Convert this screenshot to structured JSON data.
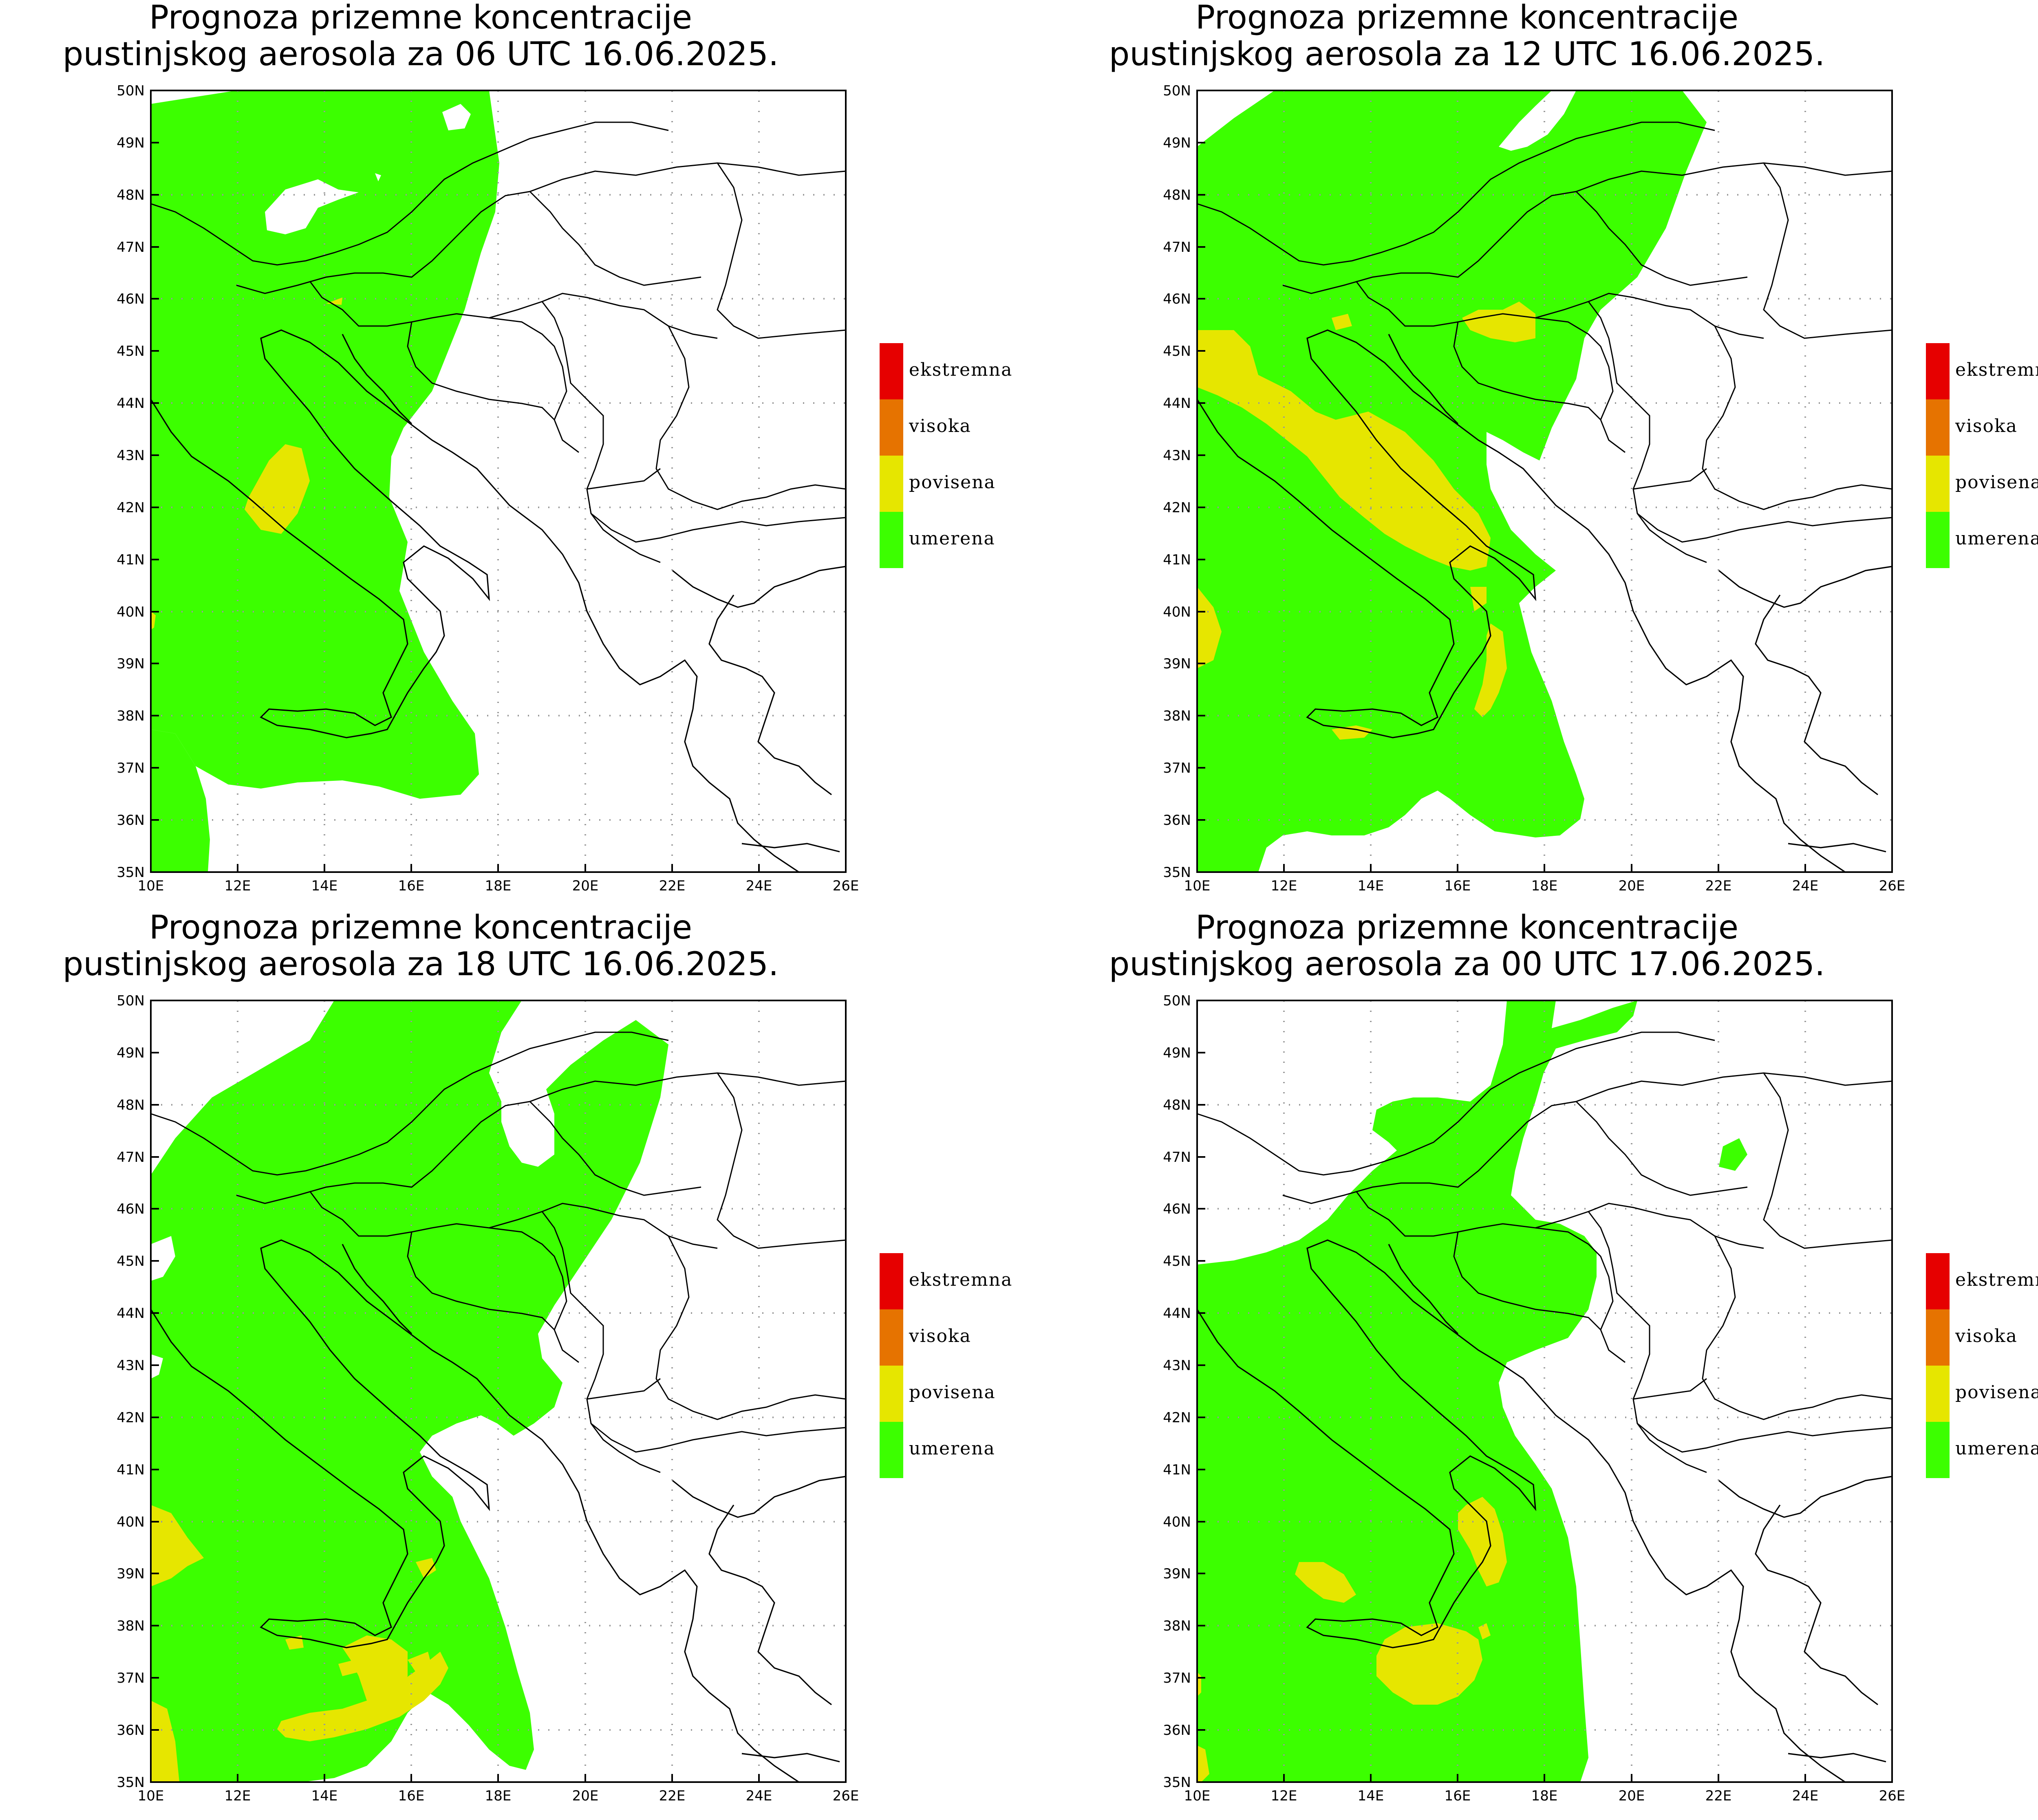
{
  "panels": [
    {
      "title_line1": "Prognoza prizemne koncentracije",
      "title_line2": "pustinjskog aerosola za 06 UTC 16.06.2025."
    },
    {
      "title_line1": "Prognoza prizemne koncentracije",
      "title_line2": "pustinjskog aerosola za 12 UTC 16.06.2025."
    },
    {
      "title_line1": "Prognoza prizemne koncentracije",
      "title_line2": "pustinjskog aerosola za 18 UTC 16.06.2025."
    },
    {
      "title_line1": "Prognoza prizemne koncentracije",
      "title_line2": "pustinjskog aerosola za 00 UTC 17.06.2025."
    }
  ],
  "axes": {
    "lon_labels": [
      "10E",
      "12E",
      "14E",
      "16E",
      "18E",
      "20E",
      "22E",
      "24E",
      "26E"
    ],
    "lat_labels": [
      "50N",
      "49N",
      "48N",
      "47N",
      "46N",
      "45N",
      "44N",
      "43N",
      "42N",
      "41N",
      "40N",
      "39N",
      "38N",
      "37N",
      "36N",
      "35N"
    ],
    "lon_range": [
      10,
      26
    ],
    "lat_range": [
      35,
      50
    ]
  },
  "legend": [
    {
      "label": "ekstremna",
      "color": "#e60000"
    },
    {
      "label": "visoka",
      "color": "#e67300"
    },
    {
      "label": "povisena",
      "color": "#e6e600"
    },
    {
      "label": "umerena",
      "color": "#3cff00"
    }
  ]
}
